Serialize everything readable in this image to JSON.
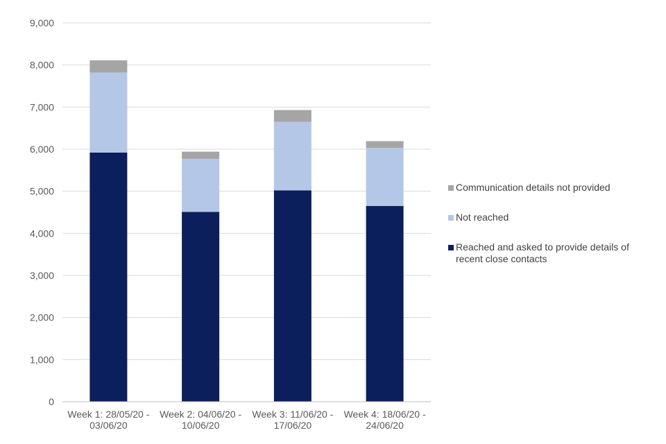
{
  "chart_data": {
    "type": "bar",
    "stacked": true,
    "title": "",
    "xlabel": "",
    "ylabel": "",
    "ylim": [
      0,
      9000
    ],
    "yticks": [
      0,
      1000,
      2000,
      3000,
      4000,
      5000,
      6000,
      7000,
      8000,
      9000
    ],
    "ytick_labels": [
      "0",
      "1,000",
      "2,000",
      "3,000",
      "4,000",
      "5,000",
      "6,000",
      "7,000",
      "8,000",
      "9,000"
    ],
    "categories": [
      [
        "Week 1: 28/05/20 -",
        "03/06/20"
      ],
      [
        "Week 2: 04/06/20 -",
        "10/06/20"
      ],
      [
        "Week 3: 11/06/20 -",
        "17/06/20"
      ],
      [
        "Week 4: 18/06/20 -",
        "24/06/20"
      ]
    ],
    "series": [
      {
        "name": "Reached and asked to provide details of recent close contacts",
        "color": "#0b1f5c",
        "values": [
          5920,
          4510,
          5020,
          4650
        ]
      },
      {
        "name": "Not reached",
        "color": "#b4c7e7",
        "values": [
          1900,
          1260,
          1630,
          1380
        ]
      },
      {
        "name": "Communication details not provided",
        "color": "#a5a5a5",
        "values": [
          290,
          170,
          280,
          160
        ]
      }
    ],
    "grid": true,
    "legend": {
      "position": "right",
      "items": [
        {
          "label": "Communication details not provided",
          "color": "#a5a5a5"
        },
        {
          "label": "Not reached",
          "color": "#b4c7e7"
        },
        {
          "label": [
            "Reached and asked to provide details of",
            "recent close contacts"
          ],
          "color": "#0b1f5c"
        }
      ]
    }
  }
}
